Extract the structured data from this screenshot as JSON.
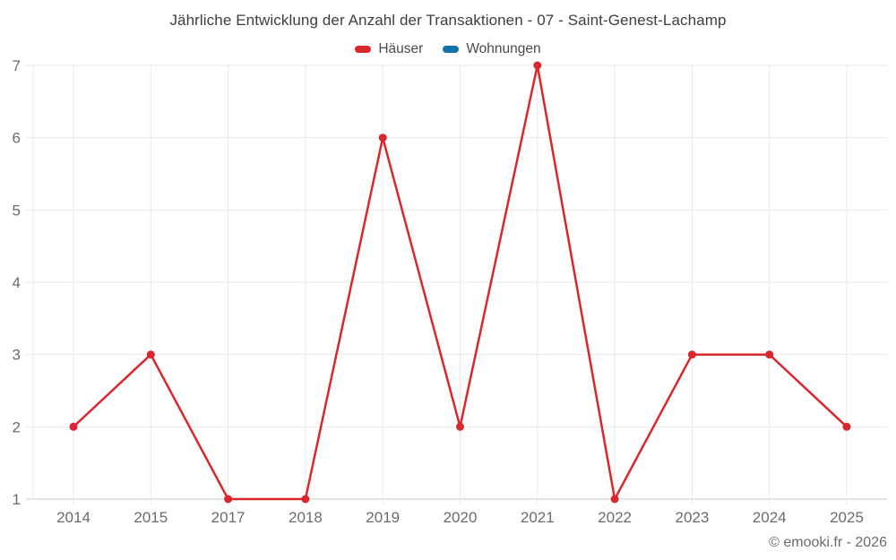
{
  "title": "Jährliche Entwicklung der Anzahl der Transaktionen - 07 - Saint-Genest-Lachamp",
  "footer": "© emooki.fr - 2026",
  "chart_data": {
    "type": "line",
    "title": "Jährliche Entwicklung der Anzahl der Transaktionen - 07 - Saint-Genest-Lachamp",
    "categories": [
      "2014",
      "2015",
      "2017",
      "2018",
      "2019",
      "2020",
      "2021",
      "2022",
      "2023",
      "2024",
      "2025"
    ],
    "series": [
      {
        "name": "Häuser",
        "color": "#d9272f",
        "values": [
          2,
          3,
          1,
          1,
          6,
          2,
          7,
          1,
          3,
          3,
          2
        ]
      },
      {
        "name": "Wohnungen",
        "color": "#1074a6",
        "values": []
      }
    ],
    "xlabel": "",
    "ylabel": "",
    "ylim": [
      1,
      7
    ],
    "yticks": [
      1,
      2,
      3,
      4,
      5,
      6,
      7
    ],
    "grid": true,
    "legend_position": "top",
    "marker": "circle"
  },
  "colors": {
    "grid": "#e9e9e9",
    "axis": "#c9c9c9",
    "tick_text": "#6b6b6b",
    "title_text": "#3e3e3e"
  }
}
